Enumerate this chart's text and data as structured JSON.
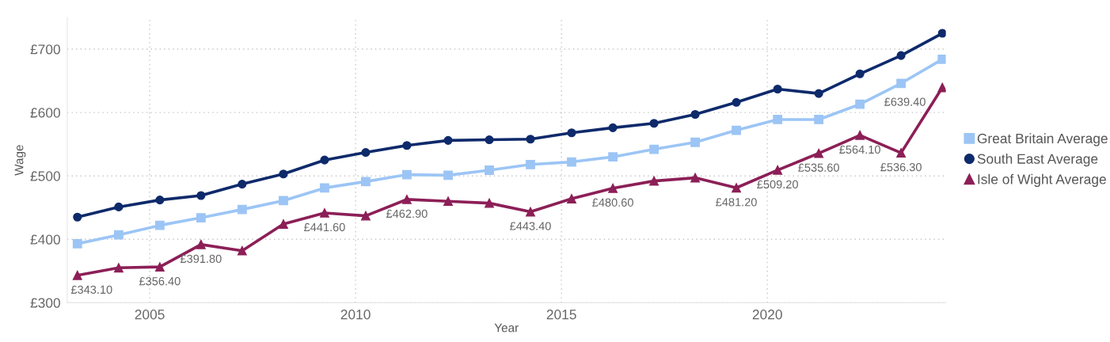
{
  "chart_data": {
    "type": "line",
    "xlabel": "Year",
    "ylabel": "Wage",
    "x": [
      "2003-04",
      "2004-04",
      "2005-04",
      "2006-04",
      "2007-04",
      "2008-04",
      "2009-04",
      "2010-04",
      "2011-04",
      "2012-04",
      "2013-04",
      "2014-04",
      "2015-04",
      "2016-04",
      "2017-04",
      "2018-04",
      "2019-04",
      "2020-04",
      "2021-04",
      "2022-04",
      "2023-04",
      "2024-04"
    ],
    "xlim": [
      "2003-01",
      "2024-05"
    ],
    "xticks": [
      "2005",
      "2010",
      "2015",
      "2020"
    ],
    "ylim": [
      300,
      750
    ],
    "yticks": [
      {
        "value": 300,
        "label": "£300"
      },
      {
        "value": 400,
        "label": "£400"
      },
      {
        "value": 500,
        "label": "£500"
      },
      {
        "value": 600,
        "label": "£600"
      },
      {
        "value": 700,
        "label": "£700"
      }
    ],
    "grid": true,
    "legend": "right",
    "series": [
      {
        "name": "Great Britain Average",
        "color": "#9cc5f5",
        "marker": "square",
        "values": [
          393,
          407,
          422,
          434,
          447,
          461,
          481,
          491,
          502,
          501,
          509,
          518,
          522,
          530,
          542,
          553,
          572,
          589,
          589,
          613,
          646,
          684
        ]
      },
      {
        "name": "South East Average",
        "color": "#0e2a6b",
        "marker": "circle",
        "values": [
          435,
          451,
          462,
          469,
          487,
          503,
          525,
          537,
          548,
          556,
          557,
          558,
          568,
          576,
          583,
          597,
          616,
          637,
          630,
          661,
          690,
          725
        ]
      },
      {
        "name": "Isle of Wight Average",
        "color": "#8c1f57",
        "marker": "triangle",
        "values": [
          343.1,
          355,
          356.4,
          391.8,
          382,
          424,
          441.6,
          437,
          462.9,
          460,
          457,
          443.4,
          464,
          480.6,
          492,
          497,
          481.2,
          509.2,
          535.6,
          564.1,
          536.3,
          639.4
        ],
        "value_labels": [
          "£343.10",
          null,
          "£356.40",
          "£391.80",
          null,
          null,
          "£441.60",
          null,
          "£462.90",
          null,
          null,
          "£443.40",
          null,
          "£480.60",
          null,
          null,
          "£481.20",
          "£509.20",
          "£535.60",
          "£564.10",
          "£536.30",
          "£639.40"
        ]
      }
    ]
  }
}
